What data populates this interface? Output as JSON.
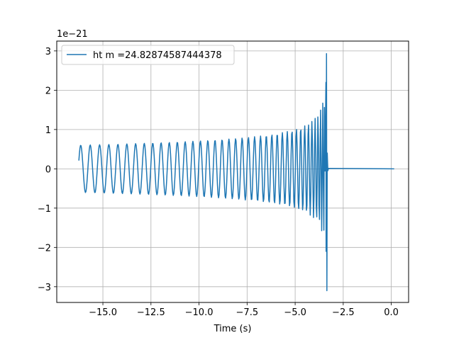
{
  "chart_data": {
    "type": "line",
    "xlabel": "Time (s)",
    "ylabel": "",
    "offset_label": "1e−21",
    "xlim": [
      -17.4,
      0.9
    ],
    "ylim": [
      -3.4,
      3.25
    ],
    "grid": true,
    "legend_position": "top-left",
    "x_ticks": [
      -15.0,
      -12.5,
      -10.0,
      -7.5,
      -5.0,
      -2.5,
      0.0
    ],
    "x_tick_labels": [
      "−15.0",
      "−12.5",
      "−10.0",
      "−7.5",
      "−5.0",
      "−2.5",
      "0.0"
    ],
    "y_ticks": [
      -3,
      -2,
      -1,
      0,
      1,
      2,
      3
    ],
    "y_tick_labels": [
      "−3",
      "−2",
      "−1",
      "0",
      "1",
      "2",
      "3"
    ],
    "series": [
      {
        "name": "ht m =24.82874587444378",
        "color": "#1f77b4",
        "t_start": -16.25,
        "t_merger": -3.35,
        "t_end": 0.15,
        "initial_amplitude": 0.6,
        "peak_max": 2.93,
        "peak_min": -3.1
      }
    ]
  }
}
